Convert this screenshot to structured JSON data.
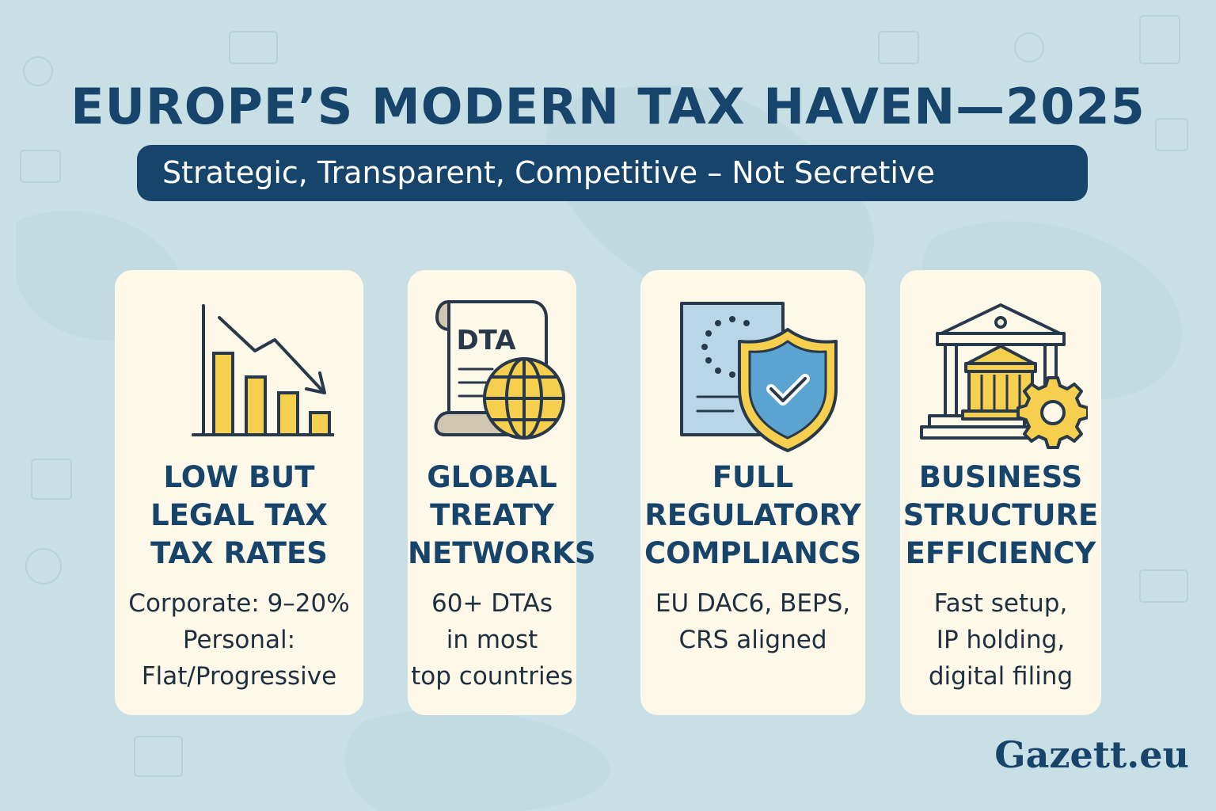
{
  "header": {
    "title": "EUROPE’S MODERN TAX HAVEN—2025",
    "subtitle": "Strategic, Transparent, Competitive – Not Secretive"
  },
  "cards": [
    {
      "icon": "declining-bar-chart-icon",
      "heading_lines": [
        "LOW BUT",
        "LEGAL TAX",
        "TAX RATES"
      ],
      "body_lines": [
        "Corporate: 9–20%",
        "Personal:",
        "Flat/Progressive"
      ]
    },
    {
      "icon": "treaty-scroll-globe-icon",
      "icon_text": "DTA",
      "heading_lines": [
        "GLOBAL",
        "TREATY",
        "NETWORKS"
      ],
      "body_lines": [
        "60+ DTAs",
        "in most",
        "top countries"
      ]
    },
    {
      "icon": "eu-document-shield-icon",
      "heading_lines": [
        "FULL",
        "REGULATORY",
        "COMPLIANCS"
      ],
      "body_lines": [
        "EU DAC6, BEPS,",
        "CRS aligned"
      ]
    },
    {
      "icon": "bank-building-gear-icon",
      "heading_lines": [
        "BUSINESS",
        "STRUCTURE",
        "EFFICIENCY"
      ],
      "body_lines": [
        "Fast setup,",
        "IP holding,",
        "digital filing"
      ]
    }
  ],
  "footer": {
    "brand": "Gazett.eu"
  },
  "colors": {
    "background": "#c9dfe6",
    "navy": "#17446a",
    "card": "#fdf8e8",
    "yellow": "#f6cf4f",
    "blue": "#5ba3d0",
    "outline": "#27394a"
  }
}
